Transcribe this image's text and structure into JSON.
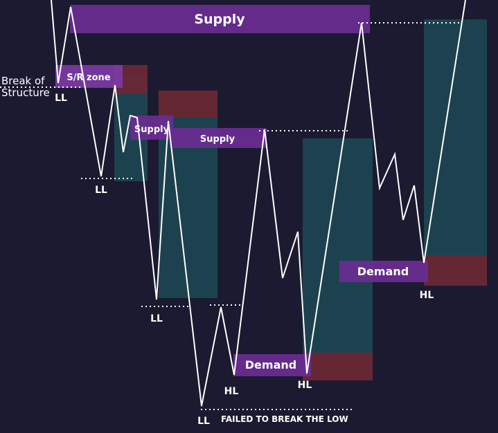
{
  "zones": {
    "supply_top": "Supply",
    "sr_zone": "S/R zone",
    "supply_small": "Supply",
    "supply_mid": "Supply",
    "demand_low": "Demand",
    "demand_right": "Demand"
  },
  "annotations": {
    "break_line1": "Break of",
    "break_line2": "Structure",
    "failed_break": "FAILED TO BREAK THE LOW"
  },
  "swing_labels": {
    "ll_1": "LL",
    "ll_2": "LL",
    "ll_3": "LL",
    "ll_4": "LL",
    "hl_1": "HL",
    "hl_2": "HL",
    "hl_3": "HL"
  },
  "colors": {
    "background": "#1c1a30",
    "zone_purple": "#6a2d92",
    "zone_purple_light": "#7c3aa6",
    "box_teal": "#1d4a55",
    "box_red": "#6a2836",
    "price_line": "#ffffff",
    "dotted_level": "#ffffff"
  }
}
